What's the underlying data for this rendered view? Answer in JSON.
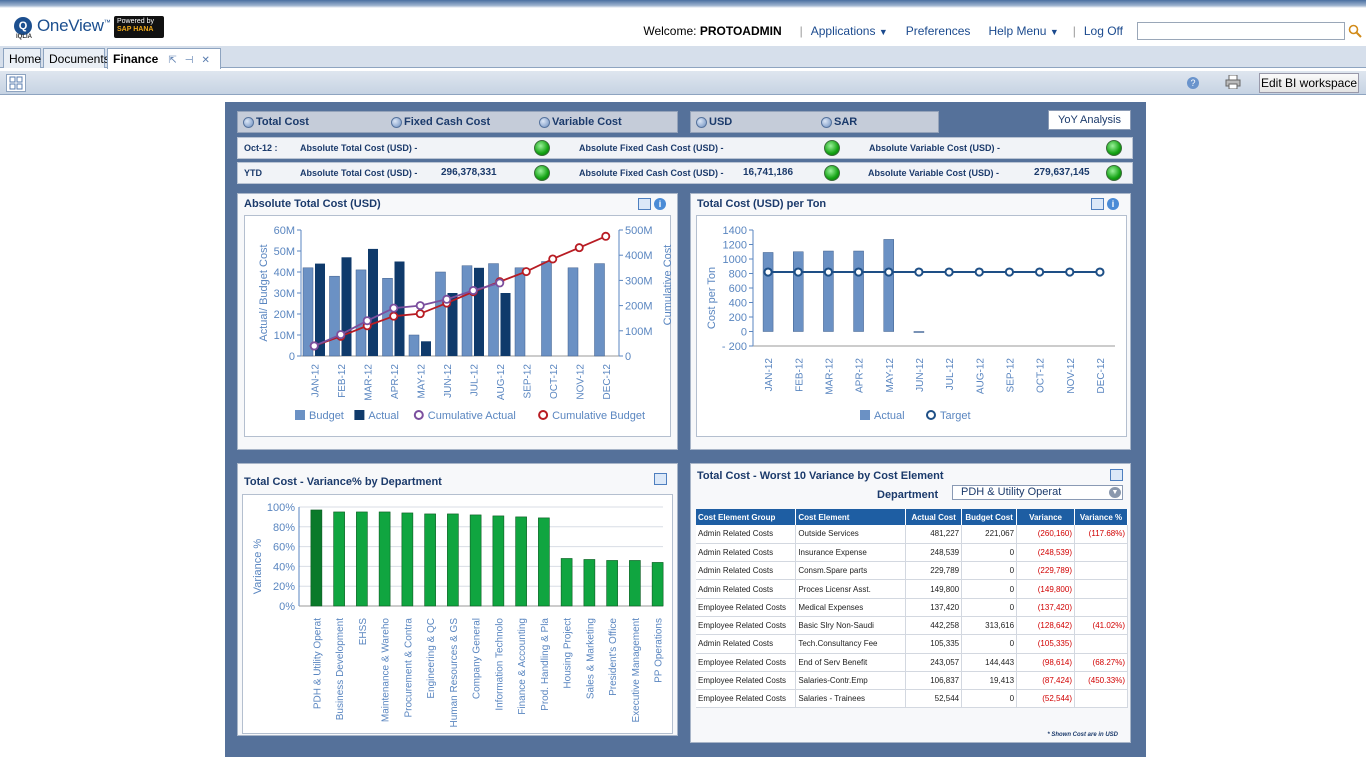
{
  "header": {
    "logo_mark": "Q",
    "logo_sub": "IQLIA",
    "app_name": "OneView",
    "app_name_tm": "™",
    "sap_line1": "Powered by",
    "sap_line2": "SAP HANA",
    "welcome_prefix": "Welcome:",
    "username": "PROTOADMIN",
    "nav": {
      "applications": "Applications",
      "preferences": "Preferences",
      "help": "Help Menu",
      "logoff": "Log Off"
    }
  },
  "tabs": [
    {
      "label": "Home"
    },
    {
      "label": "Documents"
    },
    {
      "label": "Finance"
    }
  ],
  "toolbar": {
    "help_glyph": "?",
    "edit_bi": "Edit BI workspace"
  },
  "filters": {
    "cost_types": [
      "Total Cost",
      "Fixed Cash Cost",
      "Variable Cost"
    ],
    "currencies": [
      "USD",
      "SAR"
    ],
    "yoy_button": "YoY Analysis"
  },
  "kpis": {
    "month": {
      "label": "Oct-12 :",
      "total_label": "Absolute Total Cost (USD) -",
      "total_value": "",
      "fixed_label": "Absolute Fixed Cash Cost (USD) -",
      "fixed_value": "",
      "variable_label": "Absolute Variable Cost (USD) -",
      "variable_value": ""
    },
    "ytd": {
      "label": "YTD",
      "total_label": "Absolute Total Cost (USD) -",
      "total_value": "296,378,331",
      "fixed_label": "Absolute Fixed Cash Cost (USD) -",
      "fixed_value": "16,741,186",
      "variable_label": "Absolute Variable Cost (USD) -",
      "variable_value": "279,637,145"
    },
    "status_color": "#14a314"
  },
  "panels": {
    "abs_total": "Absolute Total Cost (USD)",
    "per_ton": "Total Cost (USD) per Ton",
    "variance_dept": "Total Cost - Variance% by Department",
    "worst10": "Total Cost - Worst 10 Variance by Cost Element",
    "info_glyph": "i"
  },
  "chart_data": [
    {
      "type": "bar",
      "title": "Absolute Total Cost (USD)",
      "categories": [
        "JAN-12",
        "FEB-12",
        "MAR-12",
        "APR-12",
        "MAY-12",
        "JUN-12",
        "JUL-12",
        "AUG-12",
        "SEP-12",
        "OCT-12",
        "NOV-12",
        "DEC-12"
      ],
      "ylabel": "Actual/ Budget Cost",
      "y2label": "Cumulative Cost",
      "ylim": [
        0,
        60
      ],
      "y2lim": [
        0,
        500
      ],
      "yticks": [
        "0",
        "10M",
        "20M",
        "30M",
        "40M",
        "50M",
        "60M"
      ],
      "y2ticks": [
        "0",
        "100M",
        "200M",
        "300M",
        "400M",
        "500M"
      ],
      "series": [
        {
          "name": "Budget",
          "kind": "bar",
          "color": "#6b91c4",
          "values": [
            42,
            38,
            41,
            37,
            10,
            40,
            43,
            44,
            42,
            45,
            42,
            44
          ]
        },
        {
          "name": "Actual",
          "kind": "bar",
          "color": "#0f3a6b",
          "values": [
            44,
            47,
            51,
            45,
            7,
            30,
            42,
            30,
            null,
            null,
            null,
            null
          ]
        },
        {
          "name": "Cumulative Actual",
          "kind": "line",
          "axis": "right",
          "color": "#7b4f9e",
          "values": [
            40,
            85,
            140,
            190,
            200,
            225,
            260,
            290,
            null,
            null,
            null,
            null
          ]
        },
        {
          "name": "Cumulative Budget",
          "kind": "line",
          "axis": "right",
          "color": "#b81c23",
          "values": [
            40,
            78,
            120,
            158,
            168,
            210,
            255,
            295,
            335,
            385,
            430,
            475
          ]
        }
      ],
      "legend": "bottom"
    },
    {
      "type": "bar",
      "title": "Total Cost (USD) per Ton",
      "categories": [
        "JAN-12",
        "FEB-12",
        "MAR-12",
        "APR-12",
        "MAY-12",
        "JUN-12",
        "JUL-12",
        "AUG-12",
        "SEP-12",
        "OCT-12",
        "NOV-12",
        "DEC-12"
      ],
      "ylabel": "Cost per Ton",
      "ylim": [
        -200,
        1400
      ],
      "yticks": [
        "- 200",
        "0",
        "200",
        "400",
        "600",
        "800",
        "1000",
        "1200",
        "1400"
      ],
      "series": [
        {
          "name": "Actual",
          "kind": "bar",
          "color": "#6b91c4",
          "values": [
            1090,
            1100,
            1110,
            1110,
            1270,
            -10,
            null,
            null,
            null,
            null,
            null,
            null
          ]
        },
        {
          "name": "Target",
          "kind": "line",
          "color": "#1e4f86",
          "values": [
            820,
            820,
            820,
            820,
            820,
            820,
            820,
            820,
            820,
            820,
            820,
            820
          ]
        }
      ],
      "legend": "bottom"
    },
    {
      "type": "bar",
      "title": "Total Cost - Variance% by Department",
      "ylabel": "Variance %",
      "ylim": [
        0,
        100
      ],
      "yticks": [
        "0%",
        "20%",
        "40%",
        "60%",
        "80%",
        "100%"
      ],
      "categories": [
        "PDH & Utility Operat",
        "Business Development",
        "EHSS",
        "Maintenance & Wareho",
        "Procurement & Contra",
        "Engineering & QC",
        "Human Resources & GS",
        "Company General",
        "Information Technolo",
        "Finance & Accounting",
        "Prod. Handling & Pla",
        "Housing Project",
        "Sales & Marketing",
        "President's Office",
        "Executive Management",
        "PP Operations"
      ],
      "values": [
        97,
        95,
        95,
        95,
        94,
        93,
        93,
        92,
        91,
        90,
        89,
        48,
        47,
        46,
        46,
        44
      ],
      "highlight_color": "#0a7a2a",
      "bar_color": "#10a540"
    }
  ],
  "worst10": {
    "department_label": "Department",
    "department_value": "PDH & Utility Operat",
    "columns": [
      "Cost Element Group",
      "Cost Element",
      "Actual Cost",
      "Budget Cost",
      "Variance",
      "Variance %"
    ],
    "rows": [
      [
        "Admin Related Costs",
        "Outside Services",
        "481,227",
        "221,067",
        "(260,160)",
        "(117.68%)"
      ],
      [
        "Admin Related Costs",
        "Insurance Expense",
        "248,539",
        "0",
        "(248,539)",
        ""
      ],
      [
        "Admin Related Costs",
        "Consm.Spare parts",
        "229,789",
        "0",
        "(229,789)",
        ""
      ],
      [
        "Admin Related Costs",
        "Proces Licensr Asst.",
        "149,800",
        "0",
        "(149,800)",
        ""
      ],
      [
        "Employee Related Costs",
        "Medical Expenses",
        "137,420",
        "0",
        "(137,420)",
        ""
      ],
      [
        "Employee Related Costs",
        "Basic Slry Non-Saudi",
        "442,258",
        "313,616",
        "(128,642)",
        "(41.02%)"
      ],
      [
        "Admin Related Costs",
        "Tech.Consultancy Fee",
        "105,335",
        "0",
        "(105,335)",
        ""
      ],
      [
        "Employee Related Costs",
        "End of Serv Benefit",
        "243,057",
        "144,443",
        "(98,614)",
        "(68.27%)"
      ],
      [
        "Employee Related Costs",
        "Salaries-Contr.Emp",
        "106,837",
        "19,413",
        "(87,424)",
        "(450.33%)"
      ],
      [
        "Employee Related Costs",
        "Salaries - Trainees",
        "52,544",
        "0",
        "(52,544)",
        ""
      ]
    ],
    "footnote": "* Shown Cost are in USD"
  }
}
